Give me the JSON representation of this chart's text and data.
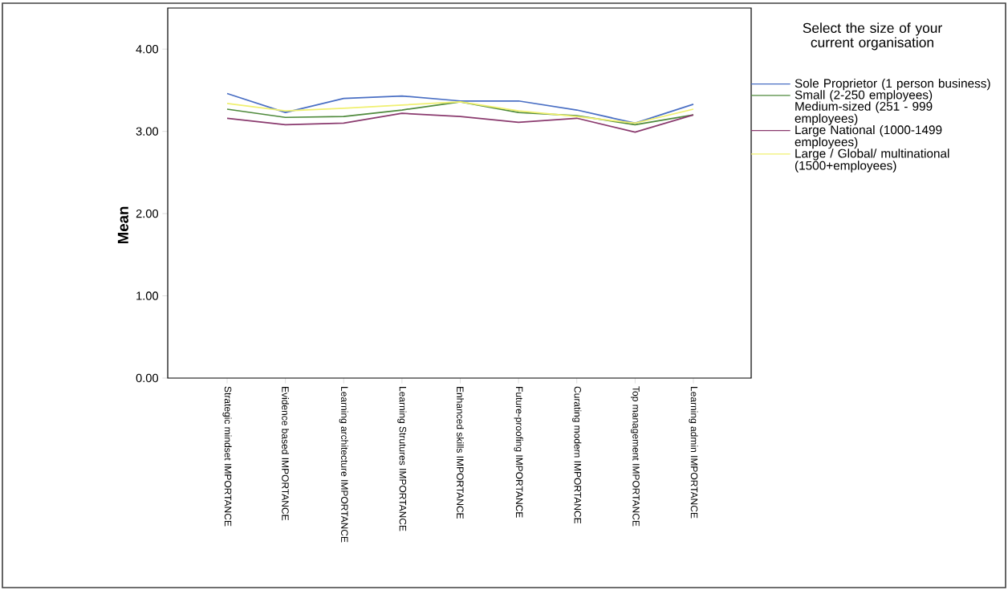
{
  "chart_data": {
    "type": "line",
    "ylabel": "Mean",
    "legend_title": "Select the size of your current organisation",
    "legend": "right",
    "categories": [
      "Strategic mindset IMPORTANCE",
      "Evidence based IMPORTANCE",
      "Learning architecture IMPORTANCE",
      "Learning Strutures IMPORTANCE",
      "Enhanced skills IMPORTANCE",
      "Future-proofing IMPORTANCE",
      "Curating modern IMPORTANCE",
      "Top management IMPORTANCE",
      "Learning admin IMPORTANCE"
    ],
    "ylim": [
      0,
      4.5
    ],
    "yticks": [
      {
        "value": 0,
        "label": "0.00"
      },
      {
        "value": 1,
        "label": "1.00"
      },
      {
        "value": 2,
        "label": "2.00"
      },
      {
        "value": 3,
        "label": "3.00"
      },
      {
        "value": 4,
        "label": "4.00"
      }
    ],
    "series": [
      {
        "name": "Sole Proprietor (1 person business)",
        "color": "#4a6fc4",
        "values": [
          3.46,
          3.23,
          3.4,
          3.43,
          3.37,
          3.37,
          3.26,
          3.1,
          3.33
        ]
      },
      {
        "name": "Small (2-250 employees)",
        "color": "#4f8a3c",
        "values": [
          3.27,
          3.17,
          3.18,
          3.26,
          3.36,
          3.23,
          3.19,
          3.08,
          3.2
        ]
      },
      {
        "name": "Medium-sized (251 - 999 employees)",
        "values": [
          null,
          null,
          null,
          null,
          null,
          null,
          null,
          null,
          null
        ]
      },
      {
        "name": "Large National (1000-1499 employees)",
        "color": "#8a3a6e",
        "values": [
          3.16,
          3.08,
          3.1,
          3.22,
          3.18,
          3.11,
          3.16,
          2.99,
          3.2
        ]
      },
      {
        "name": "Large / Global/ multinational (1500+employees)",
        "color": "#f0f070",
        "values": [
          3.34,
          3.25,
          3.28,
          3.32,
          3.36,
          3.25,
          3.18,
          3.1,
          3.27
        ]
      }
    ]
  }
}
